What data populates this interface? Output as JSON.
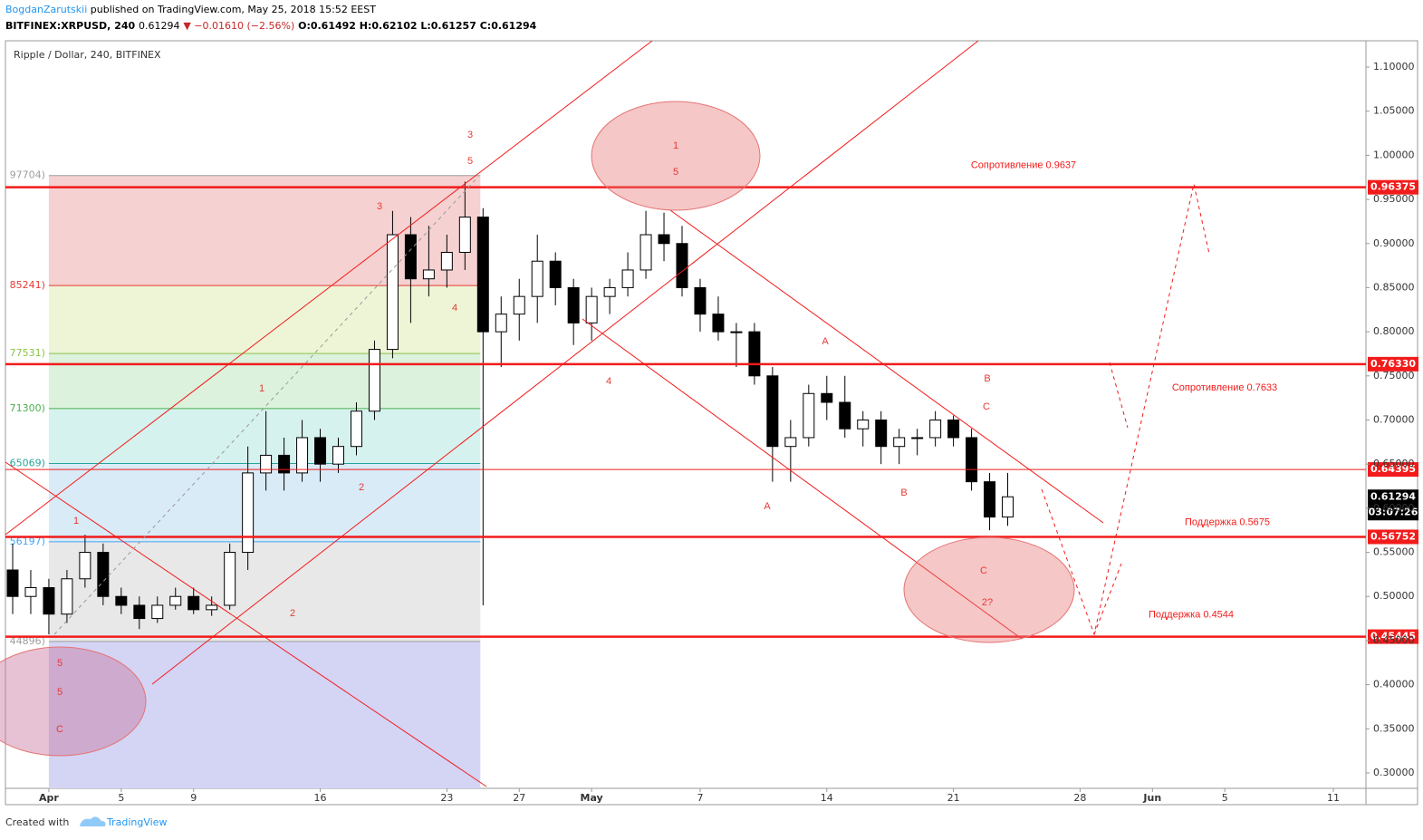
{
  "header": {
    "author": "BogdanZarutskii",
    "published": "published on TradingView.com, May 25, 2018 15:52 EEST",
    "symbol": "BITFINEX:XRPUSD, 240",
    "last": "0.61294",
    "change": "▼ −0.01610 (−2.56%)",
    "open": "O:0.61492",
    "high": "H:0.62102",
    "low": "L:0.61257",
    "close": "C:0.61294"
  },
  "chart_data": {
    "type": "candlestick",
    "title": "Ripple / Dollar, 240, BITFINEX",
    "x": [
      -2,
      -1,
      0,
      1,
      2,
      3,
      4,
      5,
      6,
      7,
      8,
      9,
      10,
      11,
      12,
      13,
      14,
      15,
      16,
      17,
      18,
      19,
      20,
      21,
      22,
      23,
      24,
      25,
      26,
      27,
      28,
      29,
      30,
      31,
      32,
      33,
      34,
      35,
      36,
      37,
      38,
      39,
      40,
      41,
      42,
      43,
      44,
      45,
      46,
      47,
      48,
      49,
      50,
      51,
      52,
      53
    ],
    "open": [
      0.53,
      0.5,
      0.51,
      0.48,
      0.52,
      0.55,
      0.5,
      0.49,
      0.475,
      0.49,
      0.5,
      0.485,
      0.49,
      0.55,
      0.64,
      0.66,
      0.64,
      0.68,
      0.65,
      0.67,
      0.71,
      0.78,
      0.91,
      0.86,
      0.87,
      0.89,
      0.93,
      0.8,
      0.82,
      0.84,
      0.88,
      0.85,
      0.81,
      0.84,
      0.85,
      0.87,
      0.91,
      0.9,
      0.85,
      0.82,
      0.8,
      0.8,
      0.75,
      0.67,
      0.68,
      0.73,
      0.72,
      0.69,
      0.7,
      0.67,
      0.68,
      0.68,
      0.7,
      0.68,
      0.63,
      0.59
    ],
    "high": [
      0.56,
      0.53,
      0.52,
      0.53,
      0.57,
      0.56,
      0.51,
      0.5,
      0.5,
      0.51,
      0.51,
      0.5,
      0.56,
      0.67,
      0.71,
      0.68,
      0.7,
      0.69,
      0.68,
      0.72,
      0.79,
      0.937,
      0.93,
      0.92,
      0.91,
      0.97,
      0.94,
      0.84,
      0.86,
      0.91,
      0.89,
      0.86,
      0.85,
      0.86,
      0.89,
      0.937,
      0.935,
      0.92,
      0.86,
      0.84,
      0.81,
      0.81,
      0.76,
      0.7,
      0.74,
      0.75,
      0.75,
      0.71,
      0.71,
      0.69,
      0.69,
      0.71,
      0.705,
      0.69,
      0.64,
      0.64
    ],
    "low": [
      0.48,
      0.48,
      0.457,
      0.47,
      0.51,
      0.49,
      0.48,
      0.463,
      0.47,
      0.485,
      0.48,
      0.478,
      0.485,
      0.53,
      0.62,
      0.62,
      0.63,
      0.63,
      0.64,
      0.66,
      0.7,
      0.77,
      0.81,
      0.84,
      0.85,
      0.87,
      0.49,
      0.76,
      0.79,
      0.81,
      0.83,
      0.785,
      0.79,
      0.82,
      0.84,
      0.86,
      0.88,
      0.84,
      0.8,
      0.79,
      0.76,
      0.74,
      0.63,
      0.63,
      0.67,
      0.7,
      0.68,
      0.67,
      0.65,
      0.65,
      0.66,
      0.67,
      0.67,
      0.62,
      0.575,
      0.58
    ],
    "close": [
      0.5,
      0.51,
      0.48,
      0.52,
      0.55,
      0.5,
      0.49,
      0.475,
      0.49,
      0.5,
      0.485,
      0.49,
      0.55,
      0.64,
      0.66,
      0.64,
      0.68,
      0.65,
      0.67,
      0.71,
      0.78,
      0.91,
      0.86,
      0.87,
      0.89,
      0.93,
      0.8,
      0.82,
      0.84,
      0.88,
      0.85,
      0.81,
      0.84,
      0.85,
      0.87,
      0.91,
      0.9,
      0.85,
      0.82,
      0.8,
      0.8,
      0.75,
      0.67,
      0.68,
      0.73,
      0.72,
      0.69,
      0.7,
      0.67,
      0.68,
      0.68,
      0.7,
      0.68,
      0.63,
      0.59,
      0.61294
    ],
    "up_color": "#ffffff",
    "down_color": "#000000",
    "wick_color": "#000000",
    "xlim": [
      -2.4,
      72.8
    ],
    "ylim": [
      0.2825,
      1.1298
    ],
    "xticks": [
      {
        "value": 0,
        "label": "Apr"
      },
      {
        "value": 4,
        "label": "5"
      },
      {
        "value": 8,
        "label": "9"
      },
      {
        "value": 15,
        "label": "16"
      },
      {
        "value": 22,
        "label": "23"
      },
      {
        "value": 26,
        "label": "27"
      },
      {
        "value": 30,
        "label": "May"
      },
      {
        "value": 36,
        "label": "7"
      },
      {
        "value": 43,
        "label": "14"
      },
      {
        "value": 50,
        "label": "21"
      },
      {
        "value": 57,
        "label": "28"
      },
      {
        "value": 61,
        "label": "Jun"
      },
      {
        "value": 65,
        "label": "5"
      },
      {
        "value": 71,
        "label": "11"
      }
    ],
    "yticks": [
      {
        "value": 0.3,
        "label": "0.30000"
      },
      {
        "value": 0.35,
        "label": "0.35000"
      },
      {
        "value": 0.4,
        "label": "0.40000"
      },
      {
        "value": 0.45,
        "label": "0.45000"
      },
      {
        "value": 0.5,
        "label": "0.50000"
      },
      {
        "value": 0.55,
        "label": "0.55000"
      },
      {
        "value": 0.6,
        "label": "0.60000"
      },
      {
        "value": 0.65,
        "label": "0.65000"
      },
      {
        "value": 0.7,
        "label": "0.70000"
      },
      {
        "value": 0.75,
        "label": "0.75000"
      },
      {
        "value": 0.8,
        "label": "0.80000"
      },
      {
        "value": 0.85,
        "label": "0.85000"
      },
      {
        "value": 0.9,
        "label": "0.90000"
      },
      {
        "value": 0.95,
        "label": "0.95000"
      },
      {
        "value": 1.0,
        "label": "1.00000"
      },
      {
        "value": 1.05,
        "label": "1.05000"
      },
      {
        "value": 1.1,
        "label": "1.10000"
      }
    ],
    "level_color": "#f21b1b",
    "levels": [
      {
        "value": 0.96375,
        "label": "0.96375",
        "note": "Сопротивление 0.9637"
      },
      {
        "value": 0.7633,
        "label": "0.76330",
        "note": "Сопротивление 0.7633"
      },
      {
        "value": 0.64395,
        "label": "0.64395"
      },
      {
        "value": 0.56752,
        "label": "0.56752",
        "note": "Поддержка 0.5675"
      },
      {
        "value": 0.45445,
        "label": "0.45445",
        "note": "Поддержка 0.4544"
      }
    ],
    "fib": {
      "start": 0,
      "end": 23.85,
      "levels": [
        {
          "value": 0.97704,
          "label": "97704)"
        },
        {
          "value": 0.85241,
          "label": "85241)"
        },
        {
          "value": 0.77531,
          "label": "77531)"
        },
        {
          "value": 0.713,
          "label": "71300)"
        },
        {
          "value": 0.65069,
          "label": "65069)"
        },
        {
          "value": 0.56197,
          "label": "56197)"
        },
        {
          "value": 0.44896,
          "label": "44896)"
        }
      ],
      "line_colors": [
        "#9e9e9e",
        "#e53935",
        "#8bc34a",
        "#4caf50",
        "#26a69a",
        "#42a5f5",
        "#9e9e9e"
      ],
      "zone_colors": [
        "#f5d1d1",
        "#eef5d6",
        "#dcf2dc",
        "#d6f2ee",
        "#d9ebf7",
        "#e8e8e8",
        "#d4d4f5"
      ]
    },
    "last_price": {
      "value": 0.61294,
      "label": "0.61294"
    },
    "countdown": "03:07:26",
    "annotations": [
      "3",
      "5",
      "3",
      "4",
      "1",
      "2",
      "1",
      "2",
      "5",
      "5",
      "C",
      "1",
      "5",
      "4",
      "A",
      "A",
      "B",
      "B",
      "C",
      "C",
      "2?"
    ]
  },
  "footer": {
    "created": "Created with",
    "brand": "TradingView"
  }
}
